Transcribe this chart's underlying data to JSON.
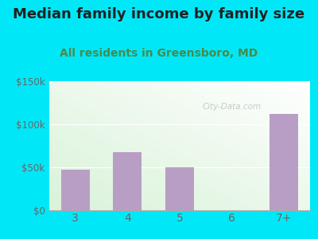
{
  "title": "Median family income by family size",
  "subtitle": "All residents in Greensboro, MD",
  "categories": [
    "3",
    "4",
    "5",
    "6",
    "7+"
  ],
  "values": [
    47500,
    68000,
    50000,
    0,
    112500
  ],
  "bar_color": "#b89ec4",
  "ylim": [
    0,
    150000
  ],
  "ytick_labels": [
    "$0",
    "$50k",
    "$100k",
    "$150k"
  ],
  "ytick_values": [
    0,
    50000,
    100000,
    150000
  ],
  "title_fontsize": 13,
  "subtitle_fontsize": 10,
  "title_color": "#222222",
  "subtitle_color": "#4a8a4a",
  "tick_color": "#666666",
  "bg_outer": "#00e8f8",
  "watermark": "City-Data.com",
  "bg_green": [
    0.85,
    0.95,
    0.85
  ],
  "bg_white": [
    1.0,
    1.0,
    1.0
  ]
}
